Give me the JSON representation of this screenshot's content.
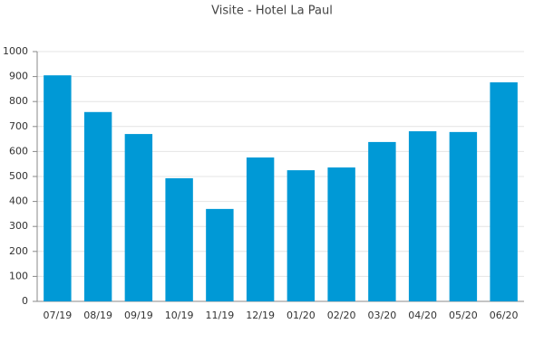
{
  "chart_data": {
    "type": "bar",
    "title": "Visite - Hotel La Paul",
    "categories": [
      "07/19",
      "08/19",
      "09/19",
      "10/19",
      "11/19",
      "12/19",
      "01/20",
      "02/20",
      "03/20",
      "04/20",
      "05/20",
      "06/20"
    ],
    "values": [
      905,
      758,
      670,
      493,
      370,
      576,
      525,
      536,
      638,
      681,
      678,
      877
    ],
    "color": "#0099d6",
    "ylim": [
      0,
      1000
    ],
    "yticks": [
      0,
      100,
      200,
      300,
      400,
      500,
      600,
      700,
      800,
      900,
      1000
    ],
    "grid": true
  }
}
